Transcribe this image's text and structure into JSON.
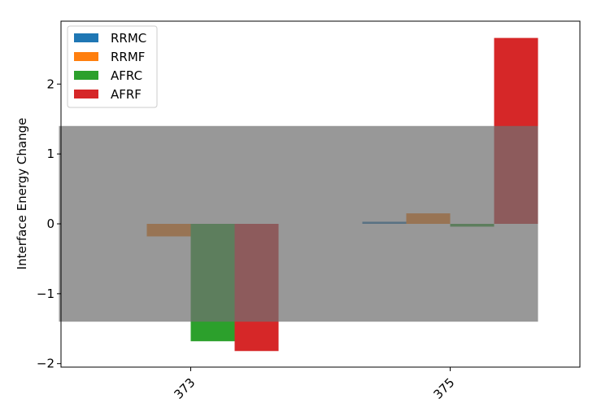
{
  "chart_data": {
    "type": "bar",
    "categories": [
      "373",
      "375"
    ],
    "series": [
      {
        "name": "RRMC",
        "values": [
          0.0,
          0.03
        ],
        "color": "#1f77b4"
      },
      {
        "name": "RRMF",
        "values": [
          -0.18,
          0.15
        ],
        "color": "#ff7f0e"
      },
      {
        "name": "AFRC",
        "values": [
          -1.68,
          -0.04
        ],
        "color": "#2ca02c"
      },
      {
        "name": "AFRF",
        "values": [
          -1.82,
          2.66
        ],
        "color": "#d62728"
      }
    ],
    "overlay_band": {
      "y_range": [
        -1.4,
        1.4
      ],
      "color": "#707070"
    },
    "title": "",
    "xlabel": "",
    "ylabel": "Interface Energy Change",
    "ylim": [
      -2.05,
      2.9
    ],
    "yticks": [
      -2,
      -1,
      0,
      1,
      2
    ],
    "ytick_labels": [
      "−2",
      "−1",
      "0",
      "1",
      "2"
    ],
    "xtick_rotation": 45,
    "legend_position": "top-left",
    "grid": false
  }
}
